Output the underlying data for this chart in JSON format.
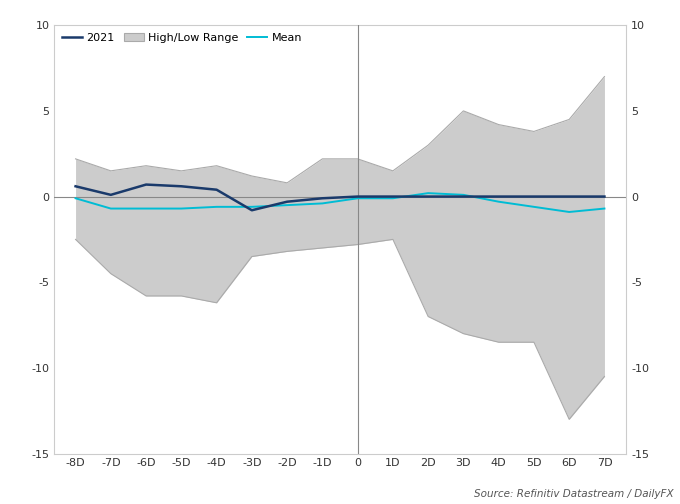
{
  "x_labels": [
    "-8D",
    "-7D",
    "-6D",
    "-5D",
    "-4D",
    "-3D",
    "-2D",
    "-1D",
    "0",
    "1D",
    "2D",
    "3D",
    "4D",
    "5D",
    "6D",
    "7D"
  ],
  "x_values": [
    -8,
    -7,
    -6,
    -5,
    -4,
    -3,
    -2,
    -1,
    0,
    1,
    2,
    3,
    4,
    5,
    6,
    7
  ],
  "line_2021": [
    0.6,
    0.1,
    0.7,
    0.6,
    0.4,
    -0.8,
    -0.3,
    -0.1,
    0.0,
    0.0,
    0.0,
    0.0,
    0.0,
    0.0,
    0.0,
    0.0
  ],
  "mean_line": [
    -0.1,
    -0.7,
    -0.7,
    -0.7,
    -0.6,
    -0.6,
    -0.5,
    -0.4,
    -0.1,
    -0.1,
    0.2,
    0.1,
    -0.3,
    -0.6,
    -0.9,
    -0.7
  ],
  "high_values": [
    2.2,
    1.5,
    1.8,
    1.5,
    1.8,
    1.2,
    0.8,
    2.2,
    2.2,
    1.5,
    3.0,
    5.0,
    4.2,
    3.8,
    4.5,
    7.0
  ],
  "low_values": [
    -2.5,
    -4.5,
    -5.8,
    -5.8,
    -6.2,
    -3.5,
    -3.2,
    -3.0,
    -2.8,
    -2.5,
    -7.0,
    -8.0,
    -8.5,
    -8.5,
    -13.0,
    -10.5
  ],
  "line_2021_color": "#1a3a6b",
  "mean_color": "#00bcd4",
  "band_color": "#cccccc",
  "band_edge_color": "#aaaaaa",
  "zero_line_color": "#888888",
  "vline_color": "#888888",
  "spine_color": "#cccccc",
  "background_color": "#ffffff",
  "ylim": [
    -15,
    10
  ],
  "yticks": [
    -15,
    -10,
    -5,
    0,
    5,
    10
  ],
  "source_text": "Source: Refinitiv Datastream / DailyFX",
  "legend_2021": "2021",
  "legend_range": "High/Low Range",
  "legend_mean": "Mean",
  "tick_fontsize": 8,
  "legend_fontsize": 8
}
